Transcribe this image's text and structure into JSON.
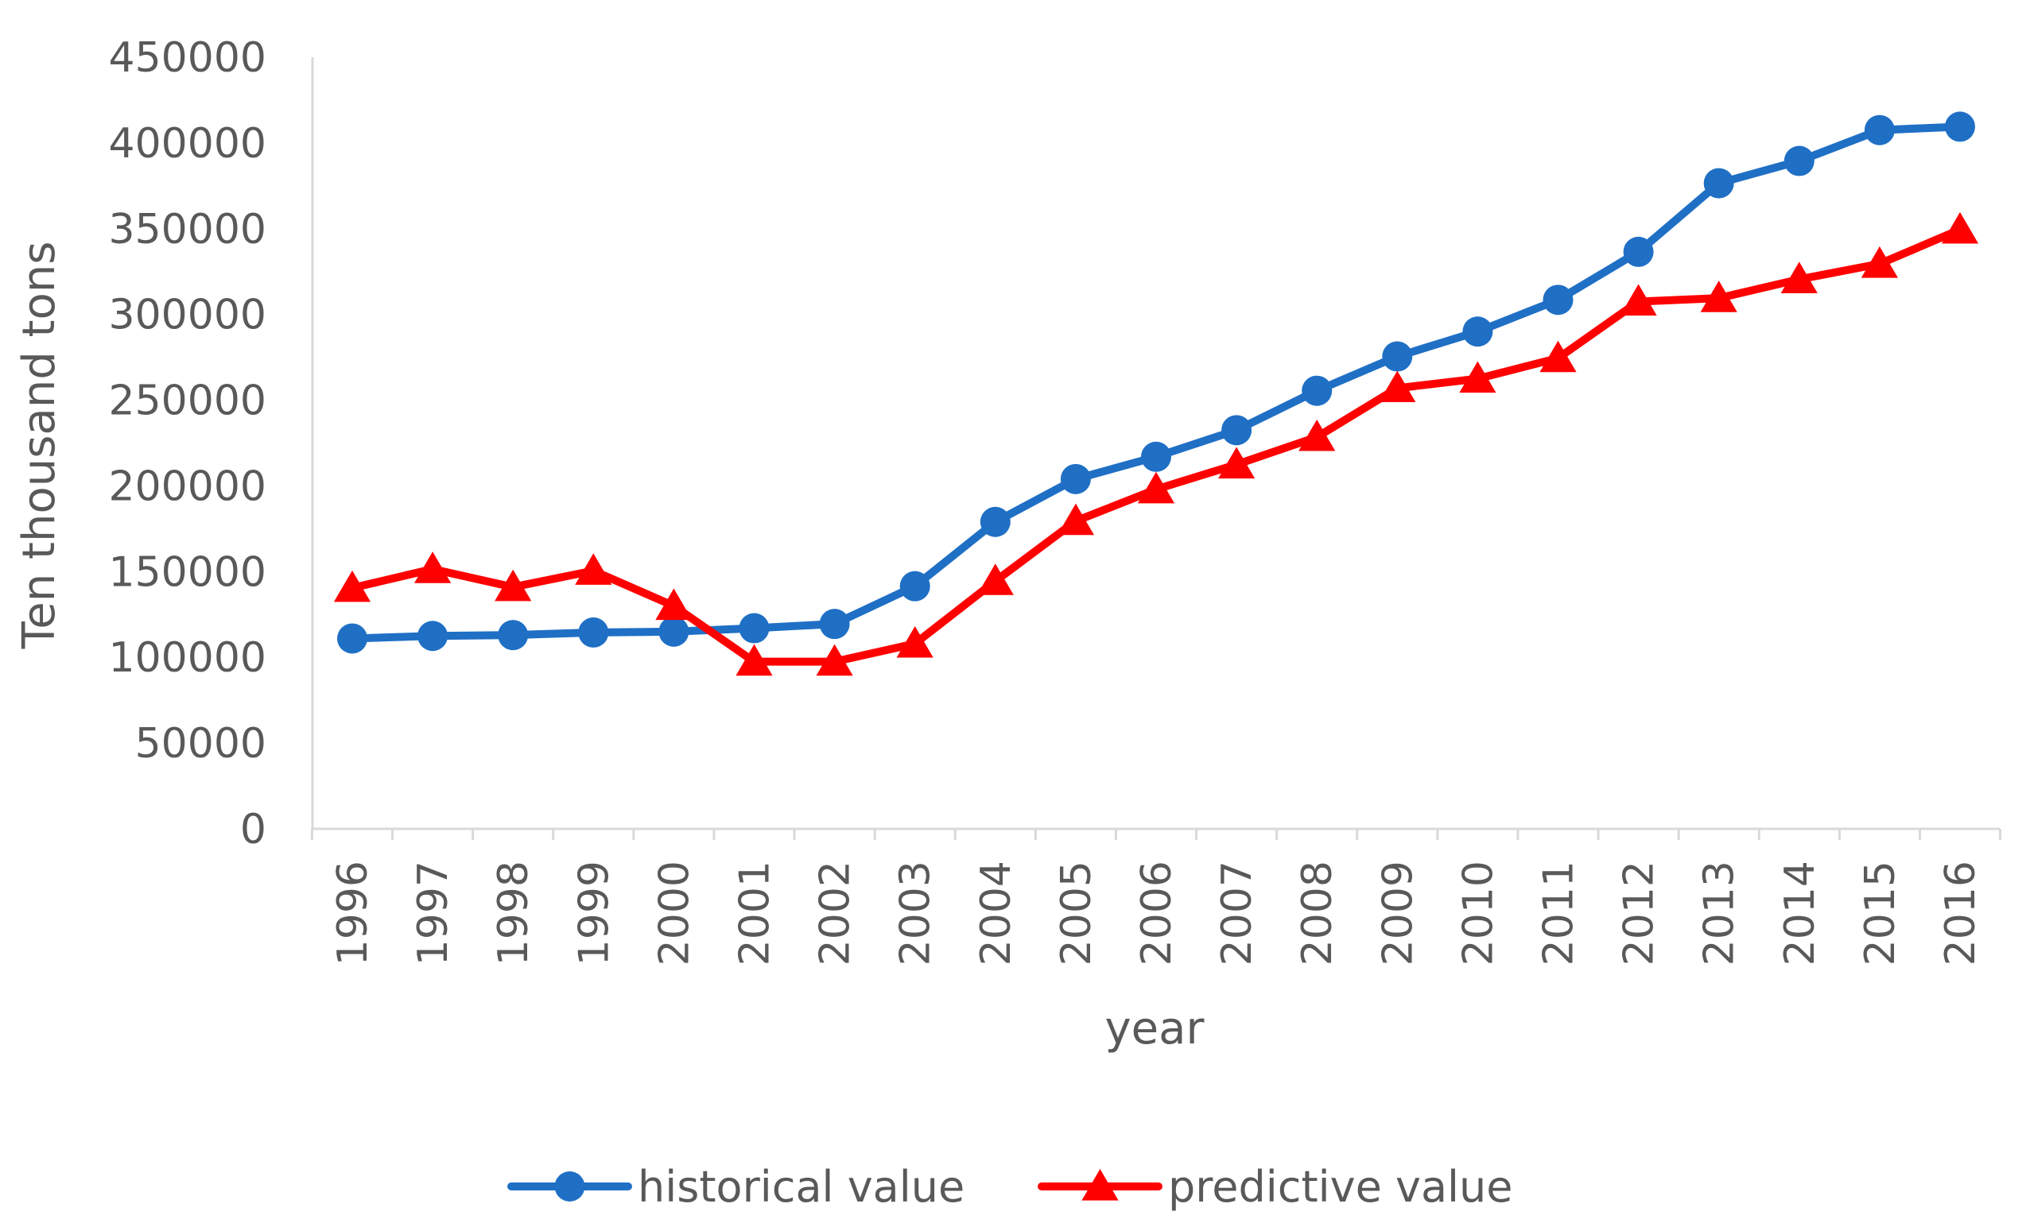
{
  "chart_data": {
    "type": "line",
    "title": "",
    "xlabel": "year",
    "ylabel": "Ten thousand tons",
    "ylim": [
      0,
      450000
    ],
    "yticks": [
      "0",
      "50000",
      "100000",
      "150000",
      "200000",
      "250000",
      "300000",
      "350000",
      "400000",
      "450000"
    ],
    "grid": false,
    "legend_position": "bottom",
    "categories": [
      "1996",
      "1997",
      "1998",
      "1999",
      "2000",
      "2001",
      "2002",
      "2003",
      "2004",
      "2005",
      "2006",
      "2007",
      "2008",
      "2009",
      "2010",
      "2011",
      "2012",
      "2013",
      "2014",
      "2015",
      "2016"
    ],
    "series": [
      {
        "name": "historical value",
        "color": "#1f6fc5",
        "marker": "circle",
        "values": [
          111000,
          112500,
          113000,
          114500,
          115000,
          117000,
          119500,
          141500,
          179000,
          204000,
          217000,
          232500,
          255500,
          275500,
          290000,
          308500,
          336500,
          376500,
          389500,
          407500,
          409500
        ]
      },
      {
        "name": "predictive value",
        "color": "#ff0000",
        "marker": "triangle",
        "values": [
          140500,
          151500,
          141000,
          150500,
          130000,
          97500,
          97500,
          108000,
          144500,
          179500,
          198000,
          212500,
          228500,
          257000,
          262500,
          274500,
          307500,
          309500,
          320500,
          329500,
          349500
        ]
      }
    ]
  }
}
